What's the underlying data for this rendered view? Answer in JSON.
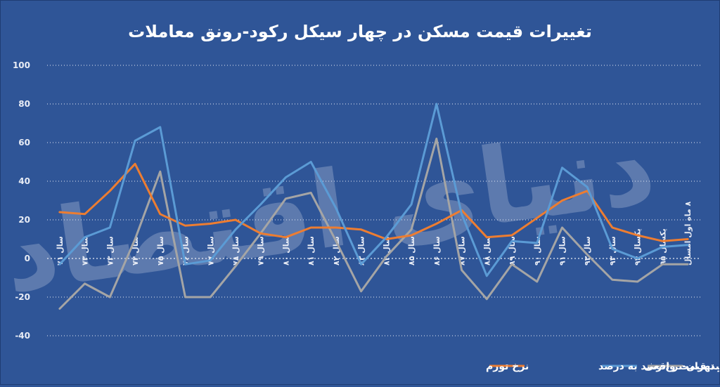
{
  "chart_data": {
    "type": "line",
    "title": "تغییرات قیمت مسکن در چهار سیکل رکود-رونق معاملات",
    "ylim": [
      -40,
      100
    ],
    "yticks": [
      "100",
      "80",
      "60",
      "40",
      "20",
      "0",
      "-20",
      "-40"
    ],
    "ytick_values": [
      100,
      80,
      60,
      40,
      20,
      0,
      -20,
      -40
    ],
    "categories": [
      "سال ۷۱",
      "سال ۷۲",
      "سال ۷۳",
      "سال ۷۴",
      "سال ۷۵",
      "سال ۷۶",
      "سال ۷۷",
      "سال ۷۸",
      "سال ۷۹",
      "سال ۸۰",
      "سال ۸۱",
      "سال ۸۲",
      "سال ۸۳",
      "سال ۸۴",
      "سال ۸۵",
      "سال ۸۶",
      "سال ۸۷",
      "سال ۸۸",
      "سال ۸۹",
      "سال ۹۰",
      "سال ۹۱",
      "سال ۹۲",
      "سال ۹۳",
      "یکسال ۹۴",
      "یکسال ۹۵",
      "۸ ماه اول امسال"
    ],
    "series": [
      {
        "name": "نرخ رشد قیمت مسکن در تهران-نرخ رشد به درصد",
        "color": "#5b9bd5",
        "values": [
          -3,
          11,
          16,
          61,
          68,
          -3,
          -1,
          15,
          28,
          42,
          50,
          26,
          -3,
          11,
          28,
          80,
          23,
          -9,
          9,
          8,
          47,
          37,
          5,
          0,
          6,
          7
        ]
      },
      {
        "name": "نرخ تورم",
        "color": "#ed7d31",
        "values": [
          24,
          23,
          35,
          49,
          23,
          17,
          18,
          20,
          13,
          11,
          16,
          16,
          15,
          10,
          12,
          18,
          25,
          11,
          12,
          21,
          30,
          35,
          16,
          12,
          9,
          10
        ]
      },
      {
        "name": "نرخ رشد قیمت واقعی",
        "color": "#a5a5a5",
        "values": [
          -26,
          -13,
          -20,
          10,
          45,
          -20,
          -20,
          -4,
          13,
          31,
          34,
          9,
          -17,
          1,
          15,
          62,
          -6,
          -21,
          -3,
          -12,
          16,
          2,
          -11,
          -12,
          -3,
          -3
        ]
      }
    ],
    "legend_position": "bottom"
  },
  "watermark": "دنیای اقتصاد"
}
